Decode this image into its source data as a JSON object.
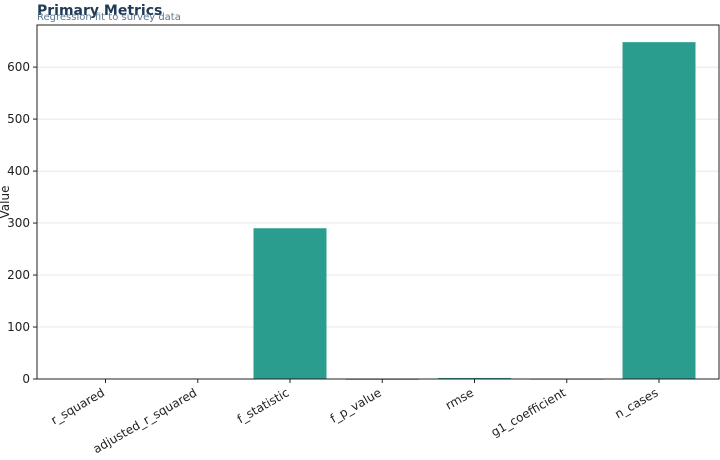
{
  "chart_data": {
    "type": "bar",
    "title": "Primary Metrics",
    "subtitle": "Regression fit to survey data",
    "y_label": "Value",
    "categories": [
      "r_squared",
      "adjusted_r_squared",
      "f_statistic",
      "f_p_value",
      "rmse",
      "g1_coefficient",
      "n_cases"
    ],
    "values": [
      0.8,
      0.8,
      290,
      0,
      2,
      0.3,
      648
    ],
    "color": "#2a9d8f",
    "ylim": [
      0,
      681
    ],
    "yticks": [
      0,
      100,
      200,
      300,
      400,
      500,
      600
    ],
    "grid": true
  }
}
